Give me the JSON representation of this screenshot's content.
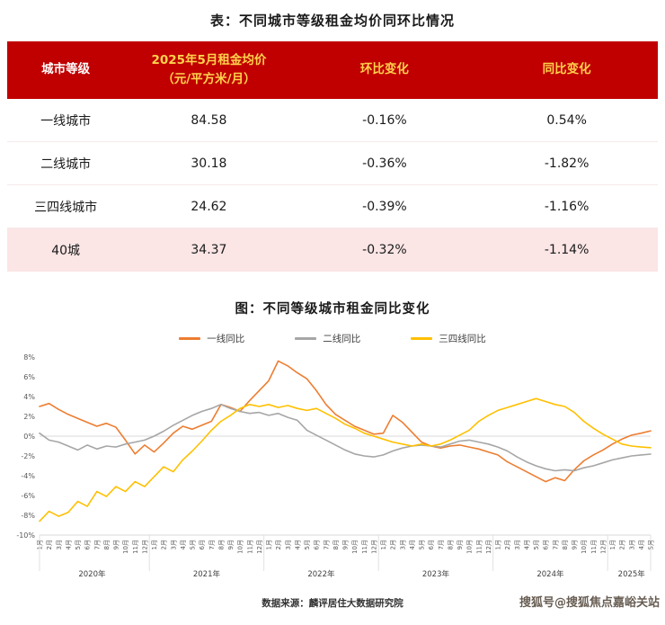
{
  "page": {
    "table_title": "表：不同城市等级租金均价同环比情况",
    "chart_title": "图：不同等级城市租金同比变化",
    "source": "数据来源：麟评居住大数据研究院",
    "watermark": "搜狐号@搜狐焦点嘉峪关站"
  },
  "table": {
    "header": {
      "tier": "城市等级",
      "price_line1": "2025年5月租金均价",
      "price_line2": "（元/平方米/月）",
      "mom": "环比变化",
      "yoy": "同比变化"
    },
    "rows": [
      {
        "tier": "一线城市",
        "price": "84.58",
        "mom": "-0.16%",
        "yoy": "0.54%"
      },
      {
        "tier": "二线城市",
        "price": "30.18",
        "mom": "-0.36%",
        "yoy": "-1.82%"
      },
      {
        "tier": "三四线城市",
        "price": "24.62",
        "mom": "-0.39%",
        "yoy": "-1.16%"
      },
      {
        "tier": "40城",
        "price": "34.37",
        "mom": "-0.32%",
        "yoy": "-1.14%"
      }
    ]
  },
  "colors": {
    "header_bg": "#C00000",
    "header_text_primary": "#FFFFFF",
    "header_text_accent": "#FFD24D",
    "highlight_row_bg": "#FBE5E5"
  },
  "chart_data": {
    "type": "line",
    "title": "图：不同等级城市租金同比变化",
    "ylabel": "",
    "xlabel": "",
    "ylim": [
      -10,
      8
    ],
    "yticks": [
      8,
      6,
      4,
      2,
      0,
      -2,
      -4,
      -6,
      -8,
      -10
    ],
    "ytick_suffix": "%",
    "grid": "zero-line-only",
    "legend_position": "top",
    "x_months": [
      "1月",
      "2月",
      "3月",
      "4月",
      "5月",
      "6月",
      "7月",
      "8月",
      "9月",
      "10月",
      "11月",
      "12月",
      "1月",
      "2月",
      "3月",
      "4月",
      "5月",
      "6月",
      "7月",
      "8月",
      "9月",
      "10月",
      "11月",
      "12月",
      "1月",
      "2月",
      "3月",
      "4月",
      "5月",
      "6月",
      "7月",
      "8月",
      "9月",
      "10月",
      "11月",
      "12月",
      "1月",
      "2月",
      "3月",
      "4月",
      "5月",
      "6月",
      "7月",
      "8月",
      "9月",
      "10月",
      "11月",
      "12月",
      "1月",
      "2月",
      "3月",
      "4月",
      "5月",
      "6月",
      "7月",
      "8月",
      "9月",
      "10月",
      "11月",
      "12月",
      "1月",
      "2月",
      "3月",
      "4月",
      "5月"
    ],
    "year_groups": [
      {
        "label": "2020年",
        "months": 12
      },
      {
        "label": "2021年",
        "months": 12
      },
      {
        "label": "2022年",
        "months": 12
      },
      {
        "label": "2023年",
        "months": 12
      },
      {
        "label": "2024年",
        "months": 12
      },
      {
        "label": "2025年",
        "months": 5
      }
    ],
    "series": [
      {
        "name": "一线同比",
        "color": "#ED7D31",
        "values": [
          3.0,
          3.3,
          2.7,
          2.2,
          1.8,
          1.4,
          1.0,
          1.3,
          0.9,
          -0.4,
          -1.8,
          -0.9,
          -1.6,
          -0.7,
          0.3,
          1.0,
          0.7,
          1.1,
          1.5,
          3.2,
          2.9,
          2.5,
          3.6,
          4.6,
          5.6,
          7.6,
          7.1,
          6.4,
          5.8,
          4.6,
          3.2,
          2.2,
          1.6,
          1.0,
          0.6,
          0.2,
          0.3,
          2.1,
          1.4,
          0.4,
          -0.6,
          -1.0,
          -1.2,
          -1.0,
          -0.9,
          -1.1,
          -1.3,
          -1.6,
          -1.9,
          -2.6,
          -3.1,
          -3.6,
          -4.1,
          -4.6,
          -4.2,
          -4.5,
          -3.4,
          -2.5,
          -1.9,
          -1.4,
          -0.8,
          -0.3,
          0.1,
          0.3,
          0.54
        ]
      },
      {
        "name": "二线同比",
        "color": "#A6A6A6",
        "values": [
          0.3,
          -0.4,
          -0.6,
          -1.0,
          -1.4,
          -0.9,
          -1.3,
          -1.0,
          -1.1,
          -0.8,
          -0.6,
          -0.4,
          0.0,
          0.5,
          1.1,
          1.6,
          2.1,
          2.5,
          2.8,
          3.2,
          2.8,
          2.5,
          2.3,
          2.4,
          2.1,
          2.3,
          1.9,
          1.6,
          0.6,
          0.1,
          -0.4,
          -0.9,
          -1.4,
          -1.8,
          -2.0,
          -2.1,
          -1.9,
          -1.5,
          -1.2,
          -1.0,
          -0.9,
          -1.0,
          -1.1,
          -0.8,
          -0.5,
          -0.4,
          -0.6,
          -0.8,
          -1.1,
          -1.5,
          -2.1,
          -2.6,
          -3.0,
          -3.3,
          -3.5,
          -3.4,
          -3.5,
          -3.2,
          -3.0,
          -2.7,
          -2.4,
          -2.2,
          -2.0,
          -1.9,
          -1.82
        ]
      },
      {
        "name": "三四线同比",
        "color": "#FFC000",
        "values": [
          -8.6,
          -7.6,
          -8.1,
          -7.7,
          -6.6,
          -7.1,
          -5.6,
          -6.1,
          -5.1,
          -5.6,
          -4.6,
          -5.1,
          -4.1,
          -3.1,
          -3.6,
          -2.4,
          -1.5,
          -0.5,
          0.6,
          1.5,
          2.1,
          2.8,
          3.2,
          3.0,
          3.2,
          2.9,
          3.1,
          2.8,
          2.6,
          2.8,
          2.3,
          1.8,
          1.2,
          0.8,
          0.3,
          0.0,
          -0.3,
          -0.6,
          -0.8,
          -1.0,
          -0.8,
          -1.0,
          -0.8,
          -0.4,
          0.1,
          0.6,
          1.5,
          2.1,
          2.6,
          2.9,
          3.2,
          3.5,
          3.8,
          3.5,
          3.2,
          3.0,
          2.4,
          1.5,
          0.8,
          0.2,
          -0.3,
          -0.8,
          -1.0,
          -1.1,
          -1.16
        ]
      }
    ]
  }
}
